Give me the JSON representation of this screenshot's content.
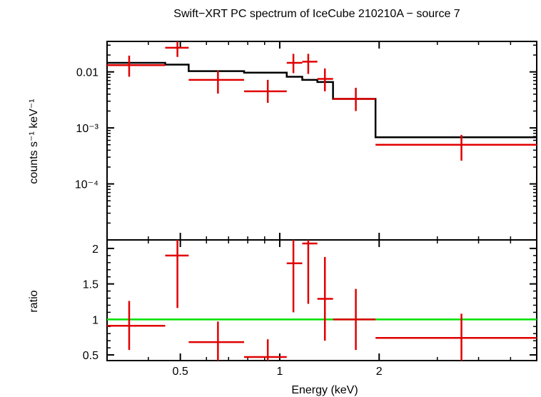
{
  "chart_data": {
    "type": "scatter",
    "title": "Swift−XRT PC spectrum of IceCube 210210A − source 7",
    "xlabel": "Energy (keV)",
    "x_scale": "log",
    "xlim": [
      0.3,
      6.0
    ],
    "x_ticks": [
      {
        "value": 0.5,
        "label": "0.5"
      },
      {
        "value": 1,
        "label": "1"
      },
      {
        "value": 2,
        "label": "2"
      }
    ],
    "colors": {
      "data": "#e00000",
      "model": "#000000",
      "ratio_line": "#00e000"
    },
    "panels": [
      {
        "name": "spectrum",
        "ylabel": "counts s⁻¹ keV⁻¹",
        "y_scale": "log",
        "ylim": [
          1e-05,
          0.035
        ],
        "y_ticks": [
          {
            "value": 0.01,
            "label": "0.01"
          },
          {
            "value": 0.001,
            "label": "10⁻³"
          },
          {
            "value": 0.0001,
            "label": "10⁻⁴"
          }
        ],
        "model_steps": [
          {
            "x0": 0.3,
            "x1": 0.45,
            "y": 0.0145
          },
          {
            "x0": 0.45,
            "x1": 0.53,
            "y": 0.0135
          },
          {
            "x0": 0.53,
            "x1": 0.78,
            "y": 0.0103
          },
          {
            "x0": 0.78,
            "x1": 1.05,
            "y": 0.0097
          },
          {
            "x0": 1.05,
            "x1": 1.17,
            "y": 0.0082
          },
          {
            "x0": 1.17,
            "x1": 1.3,
            "y": 0.0072
          },
          {
            "x0": 1.3,
            "x1": 1.45,
            "y": 0.0066
          },
          {
            "x0": 1.45,
            "x1": 1.95,
            "y": 0.0033
          },
          {
            "x0": 1.95,
            "x1": 6.0,
            "y": 0.00068
          }
        ],
        "points": [
          {
            "x": 0.35,
            "xlo": 0.3,
            "xhi": 0.45,
            "y": 0.0132,
            "ylo": 0.0082,
            "yhi": 0.0195
          },
          {
            "x": 0.49,
            "xlo": 0.45,
            "xhi": 0.53,
            "y": 0.027,
            "ylo": 0.0185,
            "yhi": 0.037
          },
          {
            "x": 0.65,
            "xlo": 0.53,
            "xhi": 0.78,
            "y": 0.0072,
            "ylo": 0.0041,
            "yhi": 0.0105
          },
          {
            "x": 0.92,
            "xlo": 0.78,
            "xhi": 1.05,
            "y": 0.0045,
            "ylo": 0.0028,
            "yhi": 0.0072
          },
          {
            "x": 1.1,
            "xlo": 1.05,
            "xhi": 1.17,
            "y": 0.0145,
            "ylo": 0.0095,
            "yhi": 0.021
          },
          {
            "x": 1.22,
            "xlo": 1.17,
            "xhi": 1.3,
            "y": 0.0152,
            "ylo": 0.0092,
            "yhi": 0.021
          },
          {
            "x": 1.37,
            "xlo": 1.3,
            "xhi": 1.45,
            "y": 0.0075,
            "ylo": 0.0045,
            "yhi": 0.0115
          },
          {
            "x": 1.7,
            "xlo": 1.45,
            "xhi": 1.95,
            "y": 0.0033,
            "ylo": 0.002,
            "yhi": 0.0052
          },
          {
            "x": 3.55,
            "xlo": 1.95,
            "xhi": 6.0,
            "y": 0.0005,
            "ylo": 0.00026,
            "yhi": 0.00075
          }
        ]
      },
      {
        "name": "ratio",
        "ylabel": "ratio",
        "y_scale": "linear",
        "ylim": [
          0.42,
          2.12
        ],
        "y_ticks": [
          {
            "value": 0.5,
            "label": "0.5"
          },
          {
            "value": 1,
            "label": "1"
          },
          {
            "value": 1.5,
            "label": "1.5"
          },
          {
            "value": 2,
            "label": "2"
          }
        ],
        "reference_line": 1,
        "points": [
          {
            "x": 0.35,
            "xlo": 0.3,
            "xhi": 0.45,
            "y": 0.91,
            "ylo": 0.57,
            "yhi": 1.26
          },
          {
            "x": 0.49,
            "xlo": 0.45,
            "xhi": 0.53,
            "y": 1.9,
            "ylo": 1.16,
            "yhi": 2.12
          },
          {
            "x": 0.65,
            "xlo": 0.53,
            "xhi": 0.78,
            "y": 0.68,
            "ylo": 0.42,
            "yhi": 0.97
          },
          {
            "x": 0.92,
            "xlo": 0.78,
            "xhi": 1.05,
            "y": 0.47,
            "ylo": 0.42,
            "yhi": 0.72
          },
          {
            "x": 1.1,
            "xlo": 1.05,
            "xhi": 1.17,
            "y": 1.79,
            "ylo": 1.1,
            "yhi": 2.12
          },
          {
            "x": 1.22,
            "xlo": 1.17,
            "xhi": 1.3,
            "y": 2.07,
            "ylo": 1.22,
            "yhi": 2.12
          },
          {
            "x": 1.37,
            "xlo": 1.3,
            "xhi": 1.45,
            "y": 1.29,
            "ylo": 0.7,
            "yhi": 1.88
          },
          {
            "x": 1.7,
            "xlo": 1.45,
            "xhi": 1.95,
            "y": 1.0,
            "ylo": 0.57,
            "yhi": 1.43
          },
          {
            "x": 3.55,
            "xlo": 1.95,
            "xhi": 6.0,
            "y": 0.74,
            "ylo": 0.42,
            "yhi": 1.08
          }
        ]
      }
    ]
  }
}
